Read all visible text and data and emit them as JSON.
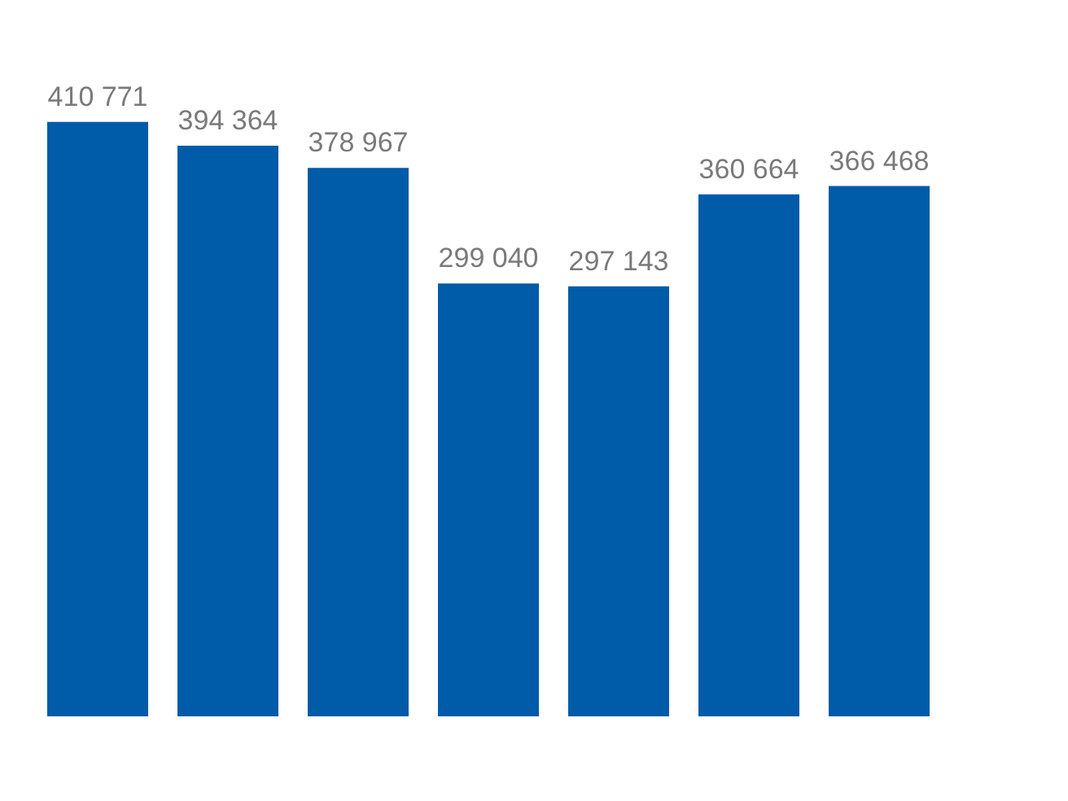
{
  "chart_data": {
    "type": "bar",
    "categories": [
      null,
      null,
      null,
      null,
      null,
      null,
      null
    ],
    "values": [
      410771,
      394364,
      378967,
      299040,
      297143,
      360664,
      366468
    ],
    "value_labels": [
      "410 771",
      "394 364",
      "378 967",
      "299 040",
      "297 143",
      "360 664",
      "366 468"
    ],
    "color": "#005ba8",
    "grid": false,
    "tick_labels": false
  }
}
